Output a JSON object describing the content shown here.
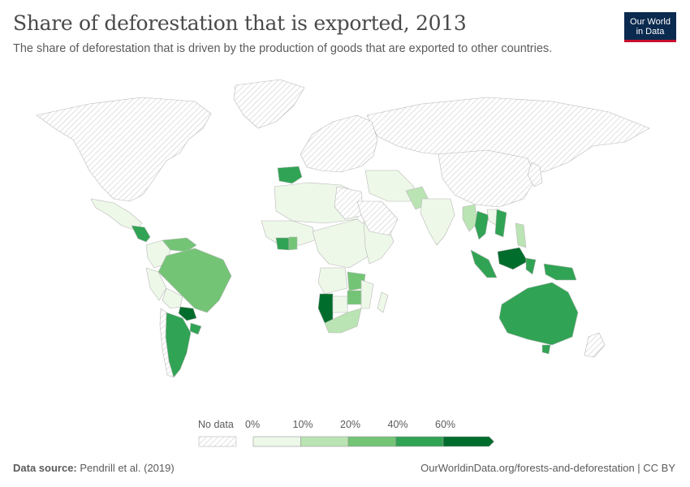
{
  "header": {
    "title": "Share of deforestation that is exported, 2013",
    "subtitle": "The share of deforestation that is driven by the production of goods that are exported to other countries."
  },
  "logo": {
    "line1": "Our World",
    "line2": "in Data"
  },
  "legend": {
    "no_data_label": "No data",
    "bins": [
      {
        "label": "0%",
        "color": "#edf8e9"
      },
      {
        "label": "10%",
        "color": "#bae4b3"
      },
      {
        "label": "20%",
        "color": "#74c476"
      },
      {
        "label": "40%",
        "color": "#31a354"
      },
      {
        "label": "60%",
        "color": "#006d2c"
      }
    ]
  },
  "colors": {
    "no_data_hatch": "#d9d9d9",
    "border": "#b8b8b8"
  },
  "regions": [
    {
      "name": "North America",
      "bin": "no-data"
    },
    {
      "name": "Greenland",
      "bin": "no-data"
    },
    {
      "name": "Russia",
      "bin": "no-data"
    },
    {
      "name": "Europe",
      "bin": "no-data"
    },
    {
      "name": "Spain",
      "bin": "40%"
    },
    {
      "name": "Mexico",
      "bin": "0%"
    },
    {
      "name": "Central America",
      "bin": "40%"
    },
    {
      "name": "Colombia",
      "bin": "0%"
    },
    {
      "name": "Venezuela",
      "bin": "20%"
    },
    {
      "name": "Brazil",
      "bin": "20%"
    },
    {
      "name": "Peru",
      "bin": "0%"
    },
    {
      "name": "Bolivia",
      "bin": "0%"
    },
    {
      "name": "Paraguay",
      "bin": "60%"
    },
    {
      "name": "Uruguay",
      "bin": "40%"
    },
    {
      "name": "Argentina",
      "bin": "40%"
    },
    {
      "name": "Chile",
      "bin": "no-data"
    },
    {
      "name": "North Africa",
      "bin": "0%"
    },
    {
      "name": "Libya",
      "bin": "no-data"
    },
    {
      "name": "West Africa",
      "bin": "0%"
    },
    {
      "name": "Ivory Coast",
      "bin": "40%"
    },
    {
      "name": "Ghana",
      "bin": "20%"
    },
    {
      "name": "Central Africa",
      "bin": "0%"
    },
    {
      "name": "East Africa",
      "bin": "0%"
    },
    {
      "name": "Angola",
      "bin": "0%"
    },
    {
      "name": "Zambia",
      "bin": "20%"
    },
    {
      "name": "Namibia",
      "bin": "60%"
    },
    {
      "name": "Botswana",
      "bin": "0%"
    },
    {
      "name": "Zimbabwe",
      "bin": "20%"
    },
    {
      "name": "South Africa",
      "bin": "10%"
    },
    {
      "name": "Mozambique",
      "bin": "0%"
    },
    {
      "name": "Madagascar",
      "bin": "0%"
    },
    {
      "name": "Saudi Arabia",
      "bin": "no-data"
    },
    {
      "name": "Middle East",
      "bin": "0%"
    },
    {
      "name": "Pakistan",
      "bin": "10%"
    },
    {
      "name": "India",
      "bin": "0%"
    },
    {
      "name": "China",
      "bin": "no-data"
    },
    {
      "name": "Myanmar",
      "bin": "10%"
    },
    {
      "name": "Thailand",
      "bin": "40%"
    },
    {
      "name": "Laos",
      "bin": "0%"
    },
    {
      "name": "Vietnam",
      "bin": "40%"
    },
    {
      "name": "Philippines",
      "bin": "10%"
    },
    {
      "name": "Sumatra",
      "bin": "40%"
    },
    {
      "name": "Borneo",
      "bin": "60%"
    },
    {
      "name": "Sulawesi",
      "bin": "40%"
    },
    {
      "name": "New Guinea",
      "bin": "40%"
    },
    {
      "name": "Japan",
      "bin": "no-data"
    },
    {
      "name": "Australia",
      "bin": "40%"
    },
    {
      "name": "Tasmania",
      "bin": "40%"
    },
    {
      "name": "New Zealand",
      "bin": "no-data"
    }
  ],
  "footer": {
    "source_label": "Data source:",
    "source_text": " Pendrill et al. (2019)",
    "right_text": "OurWorldinData.org/forests-and-deforestation | CC BY"
  }
}
